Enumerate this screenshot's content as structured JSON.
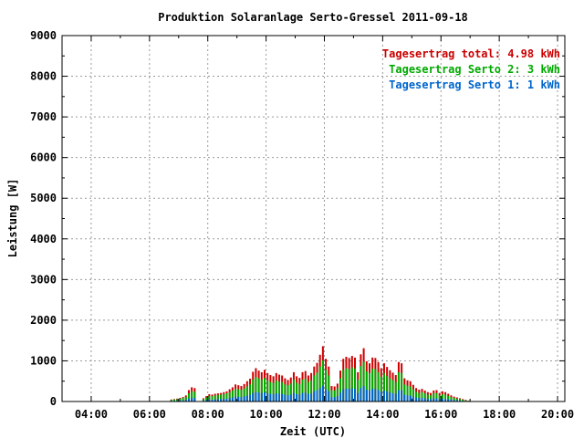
{
  "chart_data": {
    "type": "bar",
    "title": "Produktion Solaranlage Serto-Gressel 2011-09-18",
    "xlabel": "Zeit (UTC)",
    "ylabel": "Leistung [W]",
    "xlim": [
      3.0,
      20.25
    ],
    "ylim": [
      0,
      9000
    ],
    "x_ticks": [
      4,
      6,
      8,
      10,
      12,
      14,
      16,
      18,
      20
    ],
    "x_tick_labels": [
      "04:00",
      "06:00",
      "08:00",
      "10:00",
      "12:00",
      "14:00",
      "16:00",
      "18:00",
      "20:00"
    ],
    "y_ticks": [
      0,
      1000,
      2000,
      3000,
      4000,
      5000,
      6000,
      7000,
      8000,
      9000
    ],
    "y_tick_labels": [
      "0",
      "1000",
      "2000",
      "3000",
      "4000",
      "5000",
      "6000",
      "7000",
      "8000",
      "9000"
    ],
    "grid": true,
    "legend_position": "top-right",
    "colors": {
      "total": "#cc0000",
      "serto2": "#00aa00",
      "serto1": "#0066cc"
    },
    "legend": [
      {
        "label": "Tagesertrag total:",
        "value": "4.98 kWh",
        "color": "#cc0000"
      },
      {
        "label": "Tagesertrag Serto 2:",
        "value": "3 kWh",
        "color": "#00aa00"
      },
      {
        "label": "Tagesertrag Serto 1:",
        "value": "1 kWh",
        "color": "#0066cc"
      }
    ],
    "stacking": "overlapping bars drawn total, Serto 2, Serto 1 from back to front",
    "series": [
      {
        "name": "total",
        "x": [
          6.75,
          6.85,
          6.95,
          7.05,
          7.15,
          7.25,
          7.35,
          7.45,
          7.55,
          7.85,
          7.95,
          8.05,
          8.15,
          8.25,
          8.35,
          8.45,
          8.55,
          8.65,
          8.75,
          8.85,
          8.95,
          9.05,
          9.15,
          9.25,
          9.35,
          9.45,
          9.55,
          9.65,
          9.75,
          9.85,
          9.95,
          10.05,
          10.15,
          10.25,
          10.35,
          10.45,
          10.55,
          10.65,
          10.75,
          10.85,
          10.95,
          11.05,
          11.15,
          11.25,
          11.35,
          11.45,
          11.55,
          11.65,
          11.75,
          11.85,
          11.95,
          12.05,
          12.15,
          12.25,
          12.35,
          12.45,
          12.55,
          12.65,
          12.75,
          12.85,
          12.95,
          13.05,
          13.15,
          13.25,
          13.35,
          13.45,
          13.55,
          13.65,
          13.75,
          13.85,
          13.95,
          14.05,
          14.15,
          14.25,
          14.35,
          14.45,
          14.55,
          14.65,
          14.75,
          14.85,
          14.95,
          15.05,
          15.15,
          15.25,
          15.35,
          15.45,
          15.55,
          15.65,
          15.75,
          15.85,
          15.95,
          16.05,
          16.15,
          16.25,
          16.35,
          16.45,
          16.55,
          16.65,
          16.75,
          16.85,
          16.95
        ],
        "values": [
          50,
          60,
          70,
          90,
          110,
          150,
          280,
          350,
          330,
          80,
          130,
          180,
          170,
          190,
          200,
          210,
          230,
          250,
          300,
          350,
          420,
          400,
          380,
          430,
          500,
          560,
          730,
          820,
          760,
          720,
          780,
          700,
          650,
          620,
          700,
          660,
          640,
          570,
          530,
          590,
          720,
          620,
          580,
          720,
          750,
          640,
          700,
          860,
          950,
          1150,
          1360,
          1050,
          860,
          380,
          370,
          440,
          760,
          1050,
          1100,
          1070,
          1120,
          1080,
          720,
          1160,
          1310,
          990,
          940,
          1080,
          1070,
          970,
          820,
          940,
          850,
          770,
          710,
          650,
          970,
          940,
          570,
          520,
          500,
          410,
          330,
          290,
          310,
          270,
          230,
          210,
          270,
          280,
          210,
          250,
          230,
          190,
          150,
          120,
          100,
          80,
          60,
          40,
          20
        ]
      },
      {
        "name": "Serto 2",
        "x": [
          6.75,
          6.85,
          6.95,
          7.05,
          7.15,
          7.25,
          7.35,
          7.45,
          7.55,
          7.85,
          7.95,
          8.05,
          8.15,
          8.25,
          8.35,
          8.45,
          8.55,
          8.65,
          8.75,
          8.85,
          8.95,
          9.05,
          9.15,
          9.25,
          9.35,
          9.45,
          9.55,
          9.65,
          9.75,
          9.85,
          9.95,
          10.05,
          10.15,
          10.25,
          10.35,
          10.45,
          10.55,
          10.65,
          10.75,
          10.85,
          10.95,
          11.05,
          11.15,
          11.25,
          11.35,
          11.45,
          11.55,
          11.65,
          11.75,
          11.85,
          11.95,
          12.05,
          12.15,
          12.25,
          12.35,
          12.45,
          12.55,
          12.65,
          12.75,
          12.85,
          12.95,
          13.05,
          13.15,
          13.25,
          13.35,
          13.45,
          13.55,
          13.65,
          13.75,
          13.85,
          13.95,
          14.05,
          14.15,
          14.25,
          14.35,
          14.45,
          14.55,
          14.65,
          14.75,
          14.85,
          14.95,
          15.05,
          15.15,
          15.25,
          15.35,
          15.45,
          15.55,
          15.65,
          15.75,
          15.85,
          15.95,
          16.05,
          16.15,
          16.25,
          16.35,
          16.45,
          16.55,
          16.65,
          16.75,
          16.85,
          16.95
        ],
        "values": [
          40,
          50,
          55,
          70,
          90,
          110,
          200,
          250,
          240,
          60,
          100,
          140,
          130,
          150,
          160,
          170,
          180,
          200,
          230,
          270,
          310,
          300,
          290,
          320,
          370,
          420,
          540,
          600,
          570,
          540,
          580,
          520,
          480,
          460,
          520,
          490,
          480,
          420,
          400,
          440,
          540,
          460,
          430,
          540,
          560,
          480,
          520,
          640,
          710,
          860,
          1010,
          780,
          640,
          280,
          270,
          330,
          570,
          780,
          820,
          800,
          840,
          810,
          540,
          870,
          980,
          740,
          700,
          810,
          800,
          720,
          610,
          700,
          630,
          570,
          530,
          480,
          720,
          700,
          420,
          390,
          370,
          300,
          240,
          210,
          230,
          200,
          170,
          150,
          200,
          210,
          150,
          180,
          170,
          140,
          110,
          90,
          70,
          60,
          45,
          30,
          15
        ]
      },
      {
        "name": "Serto 1",
        "x": [
          6.75,
          6.85,
          6.95,
          7.05,
          7.15,
          7.25,
          7.35,
          7.45,
          7.55,
          7.85,
          7.95,
          8.05,
          8.15,
          8.25,
          8.35,
          8.45,
          8.55,
          8.65,
          8.75,
          8.85,
          8.95,
          9.05,
          9.15,
          9.25,
          9.35,
          9.45,
          9.55,
          9.65,
          9.75,
          9.85,
          9.95,
          10.05,
          10.15,
          10.25,
          10.35,
          10.45,
          10.55,
          10.65,
          10.75,
          10.85,
          10.95,
          11.05,
          11.15,
          11.25,
          11.35,
          11.45,
          11.55,
          11.65,
          11.75,
          11.85,
          11.95,
          12.05,
          12.15,
          12.25,
          12.35,
          12.45,
          12.55,
          12.65,
          12.75,
          12.85,
          12.95,
          13.05,
          13.15,
          13.25,
          13.35,
          13.45,
          13.55,
          13.65,
          13.75,
          13.85,
          13.95,
          14.05,
          14.15,
          14.25,
          14.35,
          14.45,
          14.55,
          14.65,
          14.75,
          14.85,
          14.95,
          15.05,
          15.15,
          15.25,
          15.35,
          15.45,
          15.55,
          15.65,
          15.75,
          15.85,
          15.95,
          16.05,
          16.15,
          16.25,
          16.35,
          16.45,
          16.55,
          16.65,
          16.75,
          16.85,
          16.95
        ],
        "values": [
          15,
          18,
          20,
          25,
          30,
          40,
          70,
          90,
          85,
          20,
          35,
          50,
          45,
          55,
          60,
          60,
          65,
          70,
          85,
          100,
          120,
          115,
          110,
          125,
          140,
          160,
          210,
          230,
          220,
          210,
          225,
          200,
          185,
          180,
          200,
          190,
          185,
          165,
          155,
          170,
          210,
          180,
          170,
          210,
          215,
          185,
          200,
          250,
          275,
          330,
          390,
          300,
          250,
          110,
          105,
          130,
          220,
          300,
          320,
          310,
          325,
          315,
          210,
          335,
          380,
          290,
          270,
          315,
          310,
          280,
          240,
          270,
          245,
          220,
          205,
          190,
          280,
          270,
          165,
          150,
          145,
          120,
          95,
          85,
          90,
          80,
          65,
          60,
          80,
          80,
          60,
          70,
          65,
          55,
          45,
          35,
          28,
          22,
          17,
          12,
          6
        ]
      }
    ]
  }
}
